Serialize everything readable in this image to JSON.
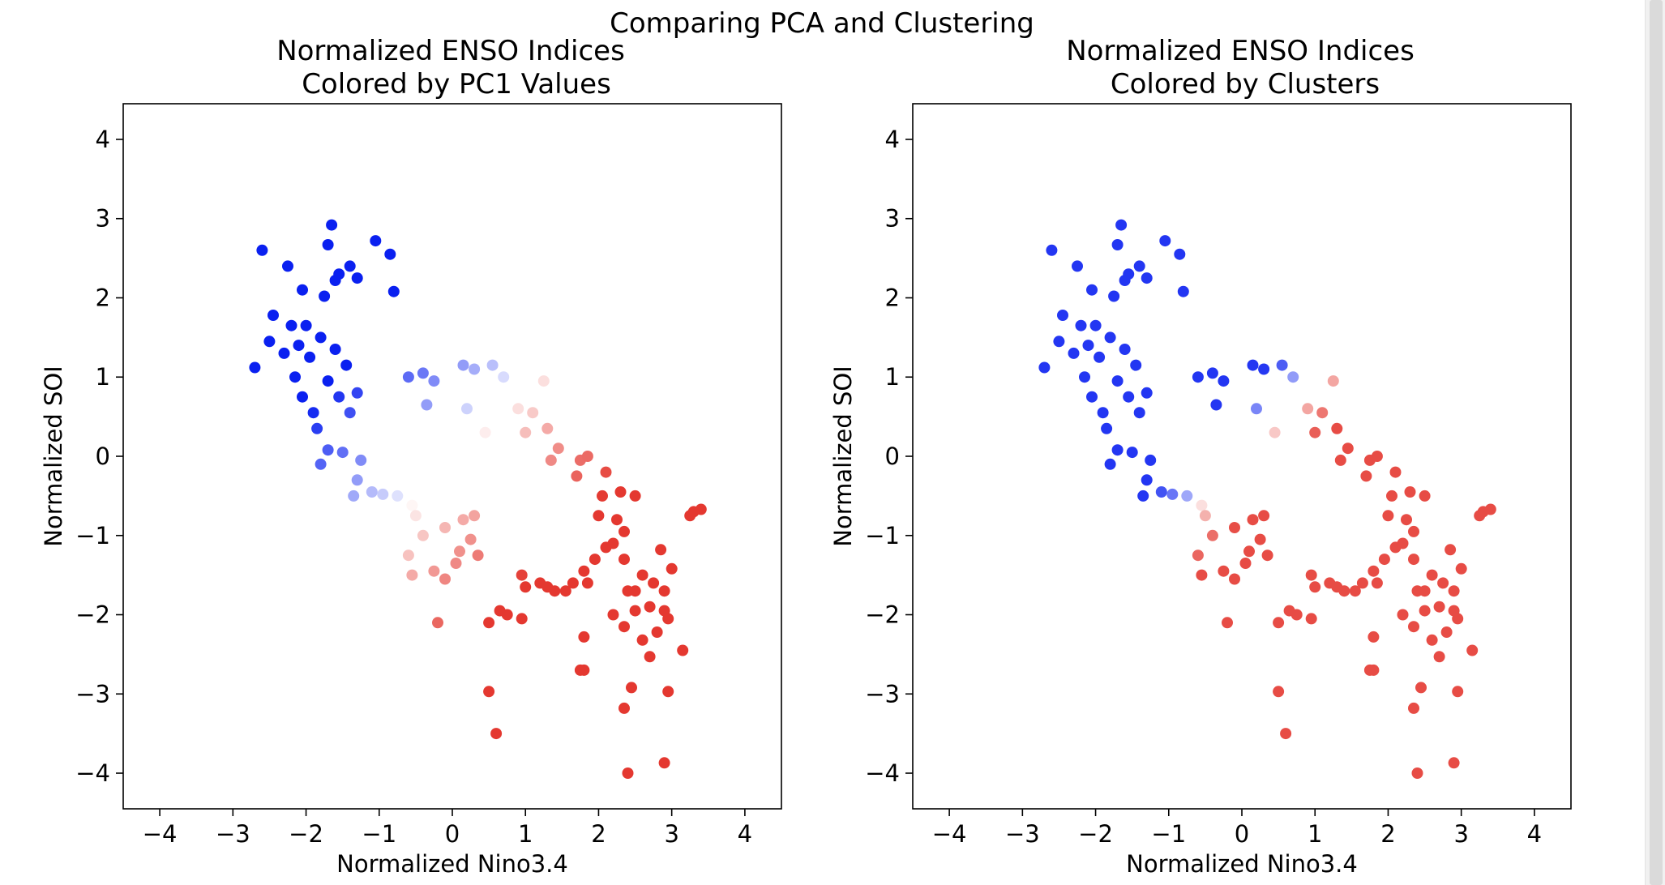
{
  "suptitle": "Comparing PCA and Clustering",
  "colors": {
    "negative": "#0a20f0",
    "neutral": "#ffffff",
    "positive": "#e43830",
    "frame": "#000000"
  },
  "charts": [
    {
      "title_lines": [
        "Normalized ENSO Indices",
        "Colored by PC1 Values"
      ],
      "color_mode": "pc1"
    },
    {
      "title_lines": [
        "Normalized ENSO Indices",
        "Colored by Clusters"
      ],
      "color_mode": "cluster"
    }
  ],
  "chart_data": {
    "type": "scatter",
    "xlabel": "Normalized Nino3.4",
    "ylabel": "Normalized SOI",
    "xlim": [
      -4.5,
      4.5
    ],
    "ylim": [
      -4.45,
      4.45
    ],
    "xticks": [
      -4,
      -3,
      -2,
      -1,
      0,
      1,
      2,
      3,
      4
    ],
    "yticks": [
      -4,
      -3,
      -2,
      -1,
      0,
      1,
      2,
      3,
      4
    ],
    "xtick_labels": [
      "−4",
      "−3",
      "−2",
      "−1",
      "0",
      "1",
      "2",
      "3",
      "4"
    ],
    "ytick_labels": [
      "−4",
      "−3",
      "−2",
      "−1",
      "0",
      "1",
      "2",
      "3",
      "4"
    ],
    "grid": false,
    "points": [
      [
        -2.6,
        2.6
      ],
      [
        -2.25,
        2.4
      ],
      [
        -1.65,
        2.92
      ],
      [
        -1.05,
        2.72
      ],
      [
        -0.85,
        2.55
      ],
      [
        -1.7,
        2.67
      ],
      [
        -2.05,
        2.1
      ],
      [
        -2.45,
        1.78
      ],
      [
        -2.5,
        1.45
      ],
      [
        -2.7,
        1.12
      ],
      [
        -1.55,
        2.3
      ],
      [
        -1.4,
        2.4
      ],
      [
        -1.3,
        2.25
      ],
      [
        -1.6,
        2.22
      ],
      [
        -1.75,
        2.02
      ],
      [
        -0.8,
        2.08
      ],
      [
        -2.2,
        1.65
      ],
      [
        -2.3,
        1.3
      ],
      [
        -2.15,
        1.0
      ],
      [
        -2.05,
        0.75
      ],
      [
        -1.9,
        0.55
      ],
      [
        -1.85,
        0.35
      ],
      [
        -1.8,
        -0.1
      ],
      [
        -1.7,
        0.08
      ],
      [
        -1.5,
        0.05
      ],
      [
        -1.25,
        -0.05
      ],
      [
        -1.3,
        -0.3
      ],
      [
        -1.35,
        -0.5
      ],
      [
        -1.1,
        -0.45
      ],
      [
        -0.95,
        -0.48
      ],
      [
        -0.75,
        -0.5
      ],
      [
        -0.55,
        -0.62
      ],
      [
        -0.5,
        -0.75
      ],
      [
        -0.6,
        1.0
      ],
      [
        -0.4,
        1.05
      ],
      [
        -0.25,
        0.95
      ],
      [
        0.15,
        1.15
      ],
      [
        0.3,
        1.1
      ],
      [
        0.55,
        1.15
      ],
      [
        0.7,
        1.0
      ],
      [
        1.25,
        0.95
      ],
      [
        0.9,
        0.6
      ],
      [
        1.1,
        0.55
      ],
      [
        1.0,
        0.3
      ],
      [
        1.3,
        0.35
      ],
      [
        1.45,
        0.1
      ],
      [
        1.35,
        -0.05
      ],
      [
        1.75,
        -0.05
      ],
      [
        1.7,
        -0.25
      ],
      [
        1.85,
        0.0
      ],
      [
        2.1,
        -0.2
      ],
      [
        2.3,
        -0.45
      ],
      [
        2.5,
        -0.5
      ],
      [
        2.05,
        -0.5
      ],
      [
        2.0,
        -0.75
      ],
      [
        2.25,
        -0.8
      ],
      [
        2.35,
        -0.95
      ],
      [
        2.2,
        -1.1
      ],
      [
        2.1,
        -1.15
      ],
      [
        2.35,
        -1.3
      ],
      [
        1.95,
        -1.3
      ],
      [
        1.8,
        -1.45
      ],
      [
        1.85,
        -1.6
      ],
      [
        1.65,
        -1.6
      ],
      [
        1.55,
        -1.7
      ],
      [
        1.4,
        -1.7
      ],
      [
        1.3,
        -1.65
      ],
      [
        1.2,
        -1.6
      ],
      [
        1.0,
        -1.65
      ],
      [
        0.95,
        -1.5
      ],
      [
        2.4,
        -1.7
      ],
      [
        2.5,
        -1.7
      ],
      [
        2.6,
        -1.5
      ],
      [
        2.75,
        -1.6
      ],
      [
        2.9,
        -1.7
      ],
      [
        3.0,
        -1.42
      ],
      [
        2.85,
        -1.18
      ],
      [
        2.7,
        -1.9
      ],
      [
        2.9,
        -1.95
      ],
      [
        2.5,
        -1.95
      ],
      [
        2.2,
        -2.0
      ],
      [
        2.35,
        -2.15
      ],
      [
        2.6,
        -2.32
      ],
      [
        2.8,
        -2.22
      ],
      [
        2.7,
        -2.53
      ],
      [
        3.15,
        -2.45
      ],
      [
        2.95,
        -2.05
      ],
      [
        1.8,
        -2.28
      ],
      [
        1.75,
        -2.7
      ],
      [
        1.8,
        -2.7
      ],
      [
        2.45,
        -2.92
      ],
      [
        2.95,
        -2.97
      ],
      [
        2.35,
        -3.18
      ],
      [
        2.4,
        -4.0
      ],
      [
        2.9,
        -3.87
      ],
      [
        0.5,
        -2.97
      ],
      [
        0.6,
        -3.5
      ],
      [
        0.5,
        -2.1
      ],
      [
        0.75,
        -2.0
      ],
      [
        0.95,
        -2.05
      ],
      [
        0.65,
        -1.95
      ],
      [
        -0.2,
        -2.1
      ],
      [
        -0.6,
        -1.25
      ],
      [
        -0.55,
        -1.5
      ],
      [
        -0.1,
        -1.55
      ],
      [
        -0.25,
        -1.45
      ],
      [
        0.05,
        -1.35
      ],
      [
        0.1,
        -1.2
      ],
      [
        0.35,
        -1.25
      ],
      [
        0.25,
        -1.05
      ],
      [
        3.3,
        -0.7
      ],
      [
        3.4,
        -0.67
      ],
      [
        3.25,
        -0.75
      ],
      [
        0.15,
        -0.8
      ],
      [
        0.3,
        -0.75
      ],
      [
        -0.4,
        -1.0
      ],
      [
        -0.1,
        -0.9
      ],
      [
        0.45,
        0.3
      ],
      [
        0.2,
        0.6
      ],
      [
        -0.35,
        0.65
      ],
      [
        -2.1,
        1.4
      ],
      [
        -2.0,
        1.65
      ],
      [
        -1.95,
        1.25
      ],
      [
        -1.8,
        1.5
      ],
      [
        -1.6,
        1.35
      ],
      [
        -1.45,
        1.15
      ],
      [
        -1.7,
        0.95
      ],
      [
        -1.55,
        0.75
      ],
      [
        -1.4,
        0.55
      ],
      [
        -1.3,
        0.8
      ]
    ]
  }
}
